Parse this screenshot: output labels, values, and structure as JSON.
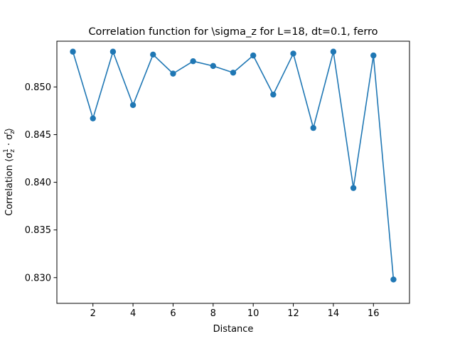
{
  "chart_data": {
    "type": "line",
    "title": "Correlation function for \\sigma_z for L=18, dt=0.1, ferro",
    "xlabel": "Distance",
    "ylabel_parts": {
      "prefix": "Correlation ⟨σ",
      "sub1": "z",
      "sup1": "1",
      "middle": " · σ",
      "sub2": "z",
      "sup2": "r",
      "suffix": "⟩"
    },
    "xlim": [
      0.2,
      17.8
    ],
    "ylim": [
      0.8273,
      0.8548
    ],
    "x_ticks": [
      2,
      4,
      6,
      8,
      10,
      12,
      14,
      16
    ],
    "y_ticks": [
      0.83,
      0.835,
      0.84,
      0.845,
      0.85
    ],
    "y_tick_labels": [
      "0.830",
      "0.835",
      "0.840",
      "0.845",
      "0.850"
    ],
    "grid": false,
    "line_color": "#1f77b4",
    "series": [
      {
        "x": [
          1,
          2,
          3,
          4,
          5,
          6,
          7,
          8,
          9,
          10,
          11,
          12,
          13,
          14,
          15,
          16,
          17
        ],
        "values": [
          0.8537,
          0.8467,
          0.8537,
          0.8481,
          0.8534,
          0.8514,
          0.8527,
          0.8522,
          0.8515,
          0.8533,
          0.8492,
          0.8535,
          0.8457,
          0.8537,
          0.8394,
          0.8533,
          0.8298
        ]
      }
    ]
  }
}
